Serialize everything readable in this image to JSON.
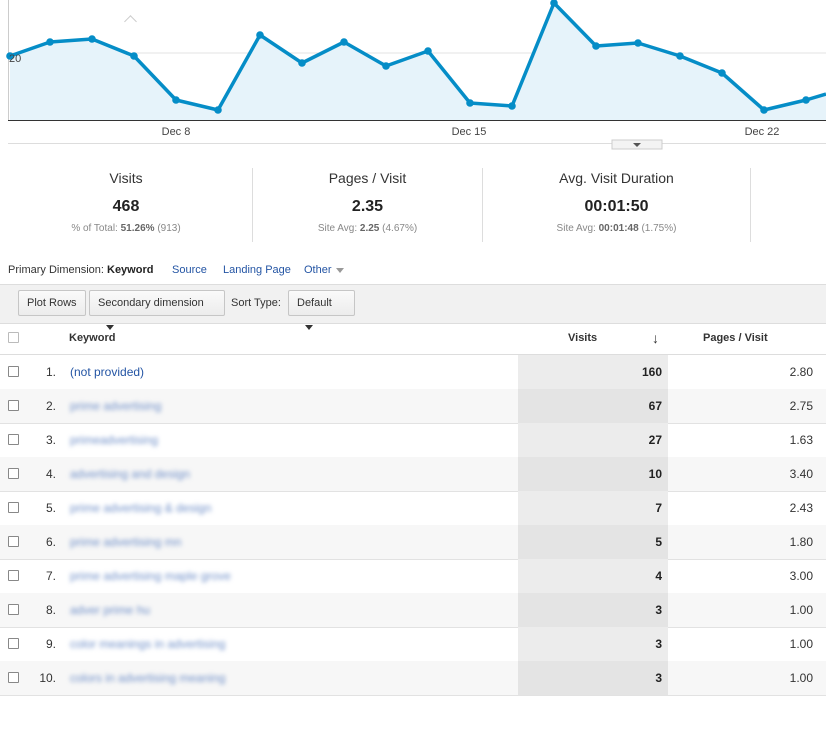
{
  "chart": {
    "y_label": "20",
    "x_labels": [
      "Dec 8",
      "Dec 15",
      "Dec 22"
    ],
    "line_color": "#058dc7",
    "area_color": "#e6f3fa",
    "points": [
      [
        10,
        56
      ],
      [
        50,
        42
      ],
      [
        92,
        39
      ],
      [
        134,
        56
      ],
      [
        176,
        100
      ],
      [
        218,
        110
      ],
      [
        260,
        35
      ],
      [
        302,
        63
      ],
      [
        344,
        42
      ],
      [
        386,
        66
      ],
      [
        428,
        51
      ],
      [
        470,
        103
      ],
      [
        512,
        106
      ],
      [
        554,
        3
      ],
      [
        596,
        46
      ],
      [
        638,
        43
      ],
      [
        680,
        56
      ],
      [
        722,
        73
      ],
      [
        764,
        110
      ],
      [
        806,
        100
      ],
      [
        826,
        94
      ]
    ]
  },
  "scorecards": [
    {
      "title": "Visits",
      "value": "468",
      "sub_label": "% of Total:",
      "sub_value": "51.26%",
      "sub_extra": "(913)"
    },
    {
      "title": "Pages / Visit",
      "value": "2.35",
      "sub_label": "Site Avg:",
      "sub_value": "2.25",
      "sub_extra": "(4.67%)"
    },
    {
      "title": "Avg. Visit Duration",
      "value": "00:01:50",
      "sub_label": "Site Avg:",
      "sub_value": "00:01:48",
      "sub_extra": "(1.75%)"
    }
  ],
  "dimension_bar": {
    "label": "Primary Dimension:",
    "current": "Keyword",
    "options": [
      "Source",
      "Landing Page",
      "Other"
    ]
  },
  "toolbar": {
    "plot_rows": "Plot Rows",
    "secondary": "Secondary dimension",
    "sort_label": "Sort Type:",
    "sort_value": "Default"
  },
  "table": {
    "headers": {
      "keyword": "Keyword",
      "visits": "Visits",
      "ppv": "Pages / Visit"
    },
    "rows": [
      {
        "n": "1.",
        "keyword": "(not provided)",
        "visits": "160",
        "ppv": "2.80"
      },
      {
        "n": "2.",
        "keyword": "prime advertising",
        "visits": "67",
        "ppv": "2.75"
      },
      {
        "n": "3.",
        "keyword": "primeadvertising",
        "visits": "27",
        "ppv": "1.63"
      },
      {
        "n": "4.",
        "keyword": "advertising and design",
        "visits": "10",
        "ppv": "3.40"
      },
      {
        "n": "5.",
        "keyword": "prime advertising & design",
        "visits": "7",
        "ppv": "2.43"
      },
      {
        "n": "6.",
        "keyword": "prime advertising mn",
        "visits": "5",
        "ppv": "1.80"
      },
      {
        "n": "7.",
        "keyword": "prime advertising maple grove",
        "visits": "4",
        "ppv": "3.00"
      },
      {
        "n": "8.",
        "keyword": "adver prime hu",
        "visits": "3",
        "ppv": "1.00"
      },
      {
        "n": "9.",
        "keyword": "color meanings in advertising",
        "visits": "3",
        "ppv": "1.00"
      },
      {
        "n": "10.",
        "keyword": "colors in advertising meaning",
        "visits": "3",
        "ppv": "1.00"
      }
    ]
  }
}
